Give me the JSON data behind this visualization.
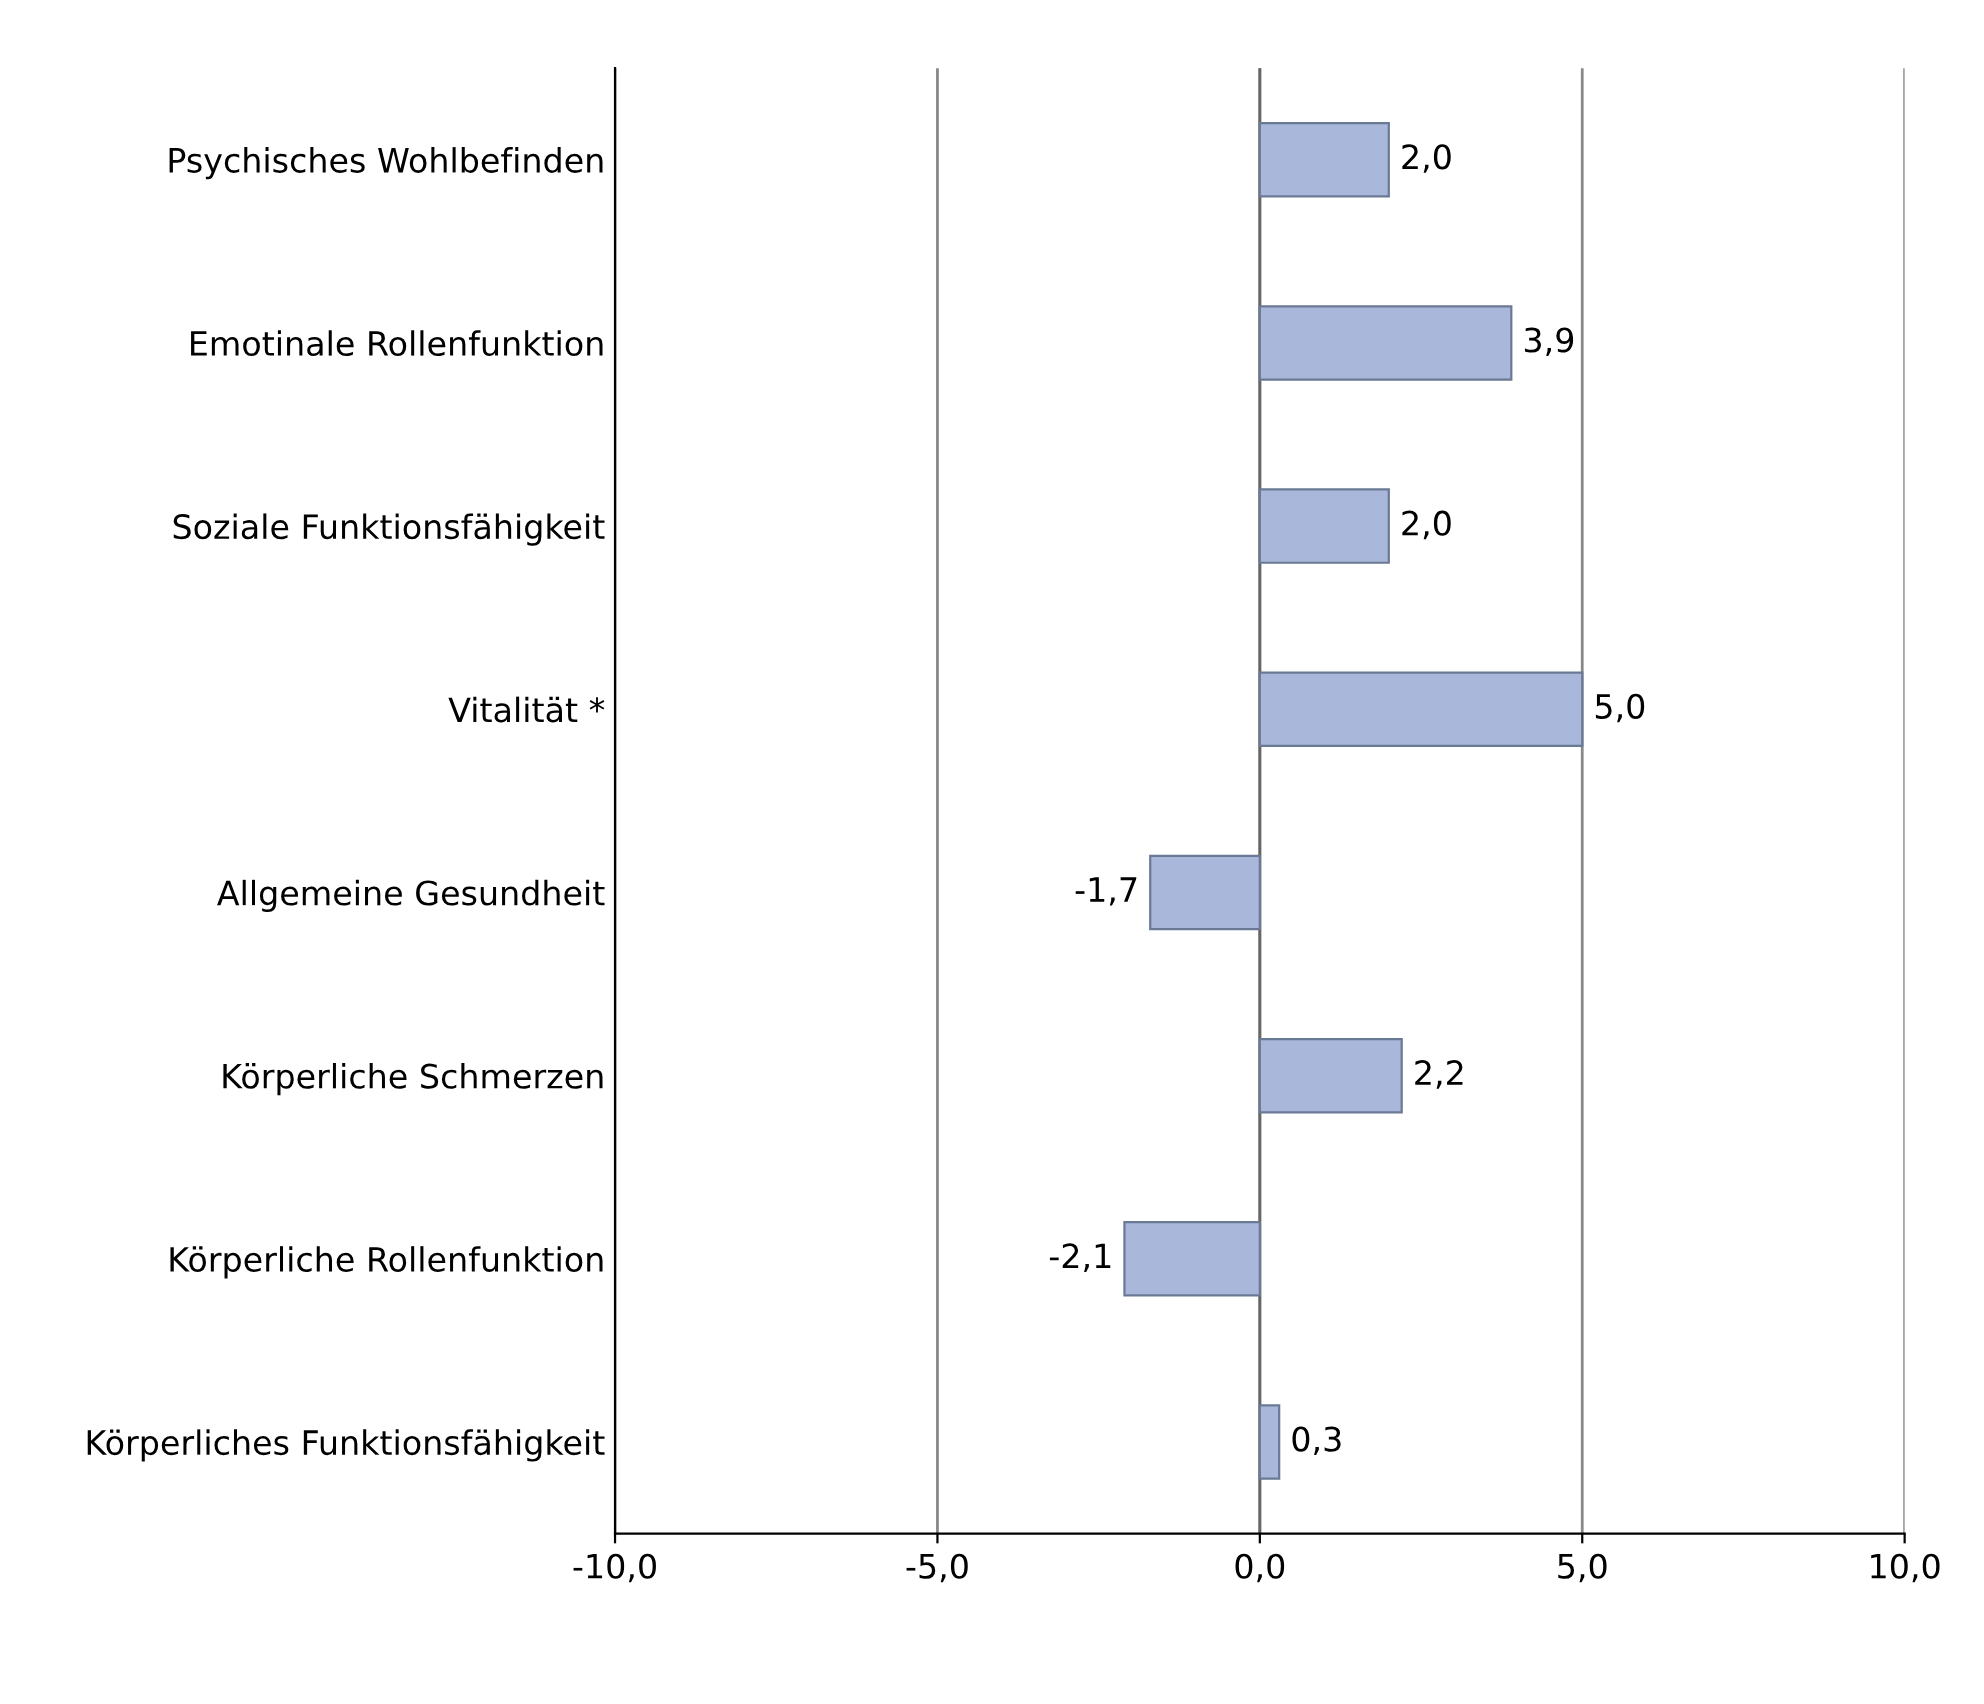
{
  "chart_data": {
    "type": "bar",
    "orientation": "horizontal",
    "categories": [
      "Psychisches Wohlbefinden",
      "Emotinale Rollenfunktion",
      "Soziale Funktionsfähigkeit",
      "Vitalität *",
      "Allgemeine Gesundheit",
      "Körperliche Schmerzen",
      "Körperliche Rollenfunktion",
      "Körperliches Funktionsfähigkeit"
    ],
    "values": [
      2.0,
      3.9,
      2.0,
      5.0,
      -1.7,
      2.2,
      -2.1,
      0.3
    ],
    "value_labels": [
      "2,0",
      "3,9",
      "2,0",
      "5,0",
      "-1,7",
      "2,2",
      "-2,1",
      "0,3"
    ],
    "color": "#a9b7db",
    "xlim": [
      -10,
      10
    ],
    "xticks": [
      {
        "value": -10,
        "label": "-10,0"
      },
      {
        "value": -5,
        "label": "-5,0"
      },
      {
        "value": 0,
        "label": "0,0"
      },
      {
        "value": 5,
        "label": "5,0"
      },
      {
        "value": 10,
        "label": "10,0"
      }
    ],
    "grid": "x"
  }
}
